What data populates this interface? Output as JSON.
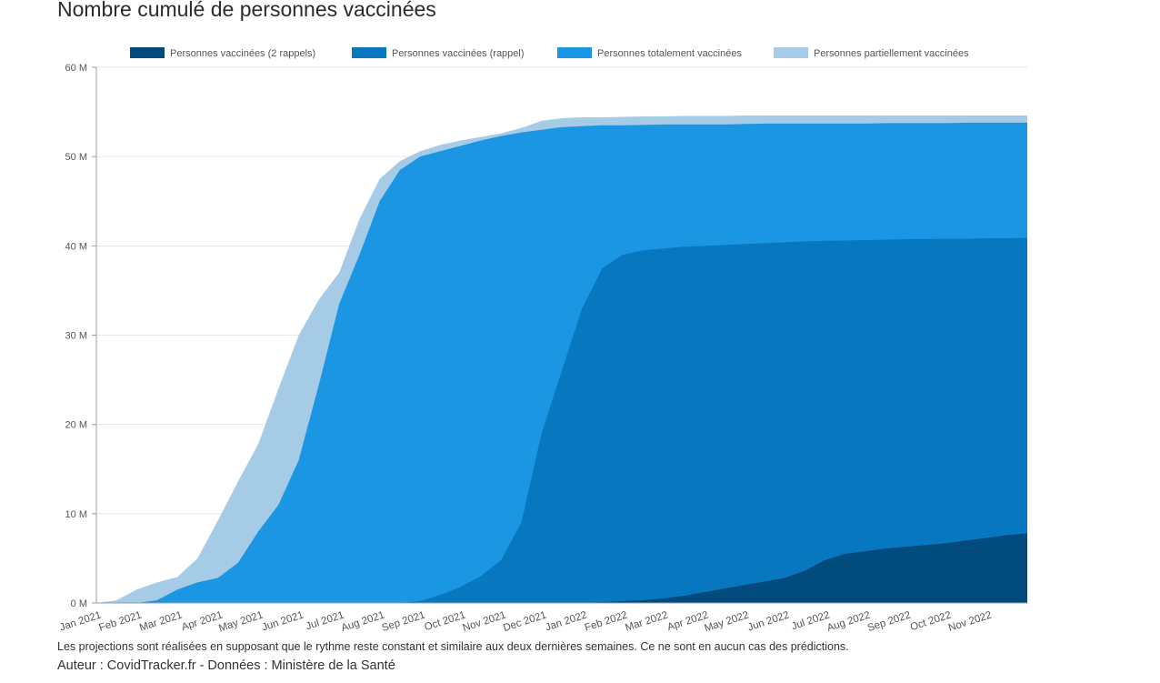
{
  "title": "Nombre cumulé de personnes vaccinées",
  "footnote": "Les projections sont réalisées en supposant que le rythme reste constant et similaire aux deux dernières semaines. Ce ne sont en aucun cas des prédictions.",
  "author": {
    "author_label": "Auteur : CovidTracker.fr",
    "separator": "-",
    "source_label": "Données : Ministère de la Santé"
  },
  "chart_data": {
    "type": "area",
    "stacked": false,
    "unit": "millions of people",
    "ylim": [
      0,
      60
    ],
    "yticks": [
      0,
      10,
      20,
      30,
      40,
      50,
      60
    ],
    "ytick_labels": [
      "0 M",
      "10 M",
      "20 M",
      "30 M",
      "40 M",
      "50 M",
      "60 M"
    ],
    "grid": true,
    "legend_position": "top",
    "x_domain_months": [
      0,
      23
    ],
    "x_tick_labels": [
      "Jan 2021",
      "Feb 2021",
      "Mar 2021",
      "Apr 2021",
      "May 2021",
      "Jun 2021",
      "Jul 2021",
      "Aug 2021",
      "Sep 2021",
      "Oct 2021",
      "Nov 2021",
      "Dec 2021",
      "Jan 2022",
      "Feb 2022",
      "Mar 2022",
      "Apr 2022",
      "May 2022",
      "Jun 2022",
      "Jul 2022",
      "Aug 2022",
      "Sep 2022",
      "Oct 2022",
      "Nov 2022"
    ],
    "x_months": [
      0,
      0.5,
      1,
      1.5,
      2,
      2.5,
      3,
      3.5,
      4,
      4.5,
      5,
      5.5,
      6,
      6.5,
      7,
      7.5,
      8,
      8.5,
      9,
      9.5,
      10,
      10.5,
      11,
      11.5,
      12,
      12.5,
      13,
      13.5,
      14,
      14.5,
      15,
      15.5,
      16,
      16.5,
      17,
      17.5,
      18,
      18.5,
      19,
      19.5,
      20,
      20.5,
      21,
      21.5,
      22,
      22.5,
      23
    ],
    "series": [
      {
        "name": "Personnes partiellement vaccinées",
        "color": "#a6cbe6",
        "values": [
          0,
          0.3,
          1.5,
          2.3,
          2.9,
          5.0,
          9.2,
          13.6,
          17.8,
          24.0,
          30.0,
          34.0,
          37.0,
          43.0,
          47.5,
          49.5,
          50.6,
          51.3,
          51.8,
          52.2,
          52.6,
          53.2,
          54.0,
          54.3,
          54.4,
          54.4,
          54.45,
          54.5,
          54.5,
          54.55,
          54.55,
          54.55,
          54.6,
          54.6,
          54.6,
          54.6,
          54.6,
          54.6,
          54.6,
          54.6,
          54.6,
          54.6,
          54.6,
          54.6,
          54.6,
          54.6,
          54.6
        ]
      },
      {
        "name": "Personnes totalement vaccinées",
        "color": "#1a96e3",
        "values": [
          0,
          0,
          0,
          0.3,
          1.5,
          2.3,
          2.8,
          4.5,
          8.0,
          11.0,
          16.0,
          24.5,
          33.5,
          39.0,
          45.0,
          48.5,
          50.0,
          50.6,
          51.2,
          51.8,
          52.3,
          52.7,
          53.0,
          53.3,
          53.4,
          53.5,
          53.5,
          53.55,
          53.6,
          53.6,
          53.6,
          53.6,
          53.65,
          53.7,
          53.7,
          53.7,
          53.7,
          53.7,
          53.7,
          53.75,
          53.75,
          53.75,
          53.75,
          53.8,
          53.8,
          53.8,
          53.8
        ]
      },
      {
        "name": "Personnes vaccinées (rappel)",
        "color": "#0777c0",
        "values": [
          0,
          0,
          0,
          0,
          0,
          0,
          0,
          0,
          0,
          0,
          0,
          0,
          0,
          0,
          0,
          0,
          0.2,
          0.9,
          1.8,
          3.0,
          4.8,
          9.0,
          19.0,
          26.0,
          33.0,
          37.5,
          39.0,
          39.5,
          39.7,
          39.9,
          40.0,
          40.1,
          40.2,
          40.3,
          40.4,
          40.5,
          40.55,
          40.6,
          40.65,
          40.7,
          40.75,
          40.75,
          40.8,
          40.8,
          40.85,
          40.85,
          40.9
        ]
      },
      {
        "name": "Personnes vaccinées (2 rappels)",
        "color": "#004b7c",
        "values": [
          0,
          0,
          0,
          0,
          0,
          0,
          0,
          0,
          0,
          0,
          0,
          0,
          0,
          0,
          0,
          0,
          0,
          0,
          0,
          0,
          0,
          0,
          0,
          0,
          0,
          0.1,
          0.2,
          0.3,
          0.5,
          0.8,
          1.2,
          1.6,
          2.0,
          2.4,
          2.8,
          3.6,
          4.8,
          5.5,
          5.8,
          6.1,
          6.3,
          6.5,
          6.7,
          7.0,
          7.3,
          7.6,
          7.8
        ]
      }
    ],
    "legend_order": [
      "Personnes vaccinées (2 rappels)",
      "Personnes vaccinées (rappel)",
      "Personnes totalement vaccinées",
      "Personnes partiellement vaccinées"
    ]
  }
}
